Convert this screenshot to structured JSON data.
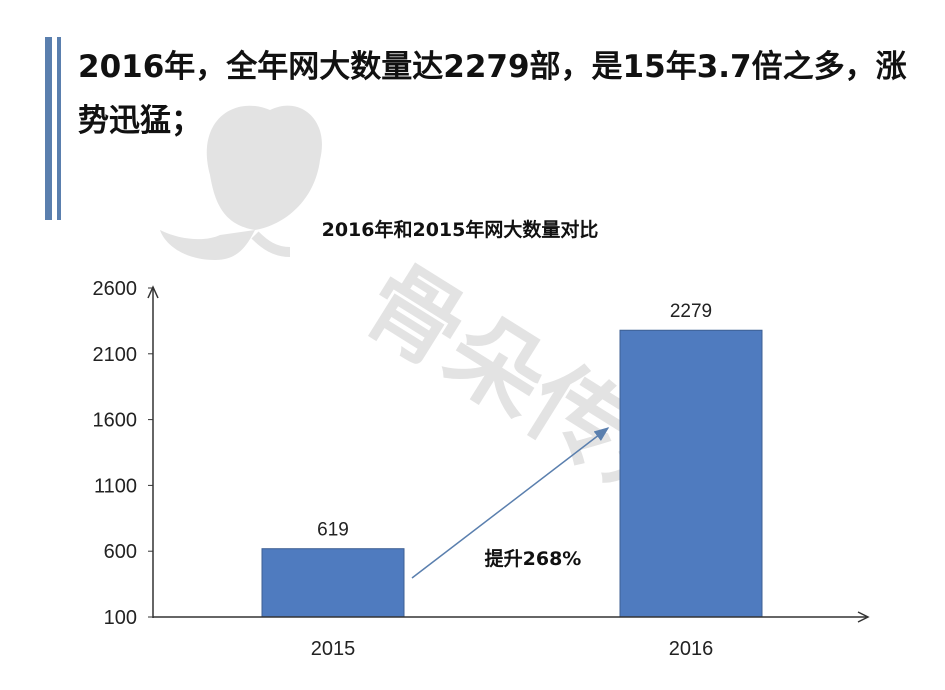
{
  "headline": "2016年，全年网大数量达2279部，是15年3.7倍之多，涨势迅猛；",
  "watermark": {
    "text": "骨朵传媒",
    "color": "#e3e3e3"
  },
  "chart_data": {
    "type": "bar",
    "title": "2016年和2015年网大数量对比",
    "categories": [
      "2015",
      "2016"
    ],
    "values": [
      619,
      2279
    ],
    "data_labels": [
      "619",
      "2279"
    ],
    "ylim": [
      100,
      2600
    ],
    "yticks": [
      "100",
      "600",
      "1100",
      "1600",
      "2100",
      "2600"
    ],
    "xlabel": "",
    "ylabel": "",
    "grid": false,
    "bar_color": "#4f7bbf",
    "annotation": "提升268%"
  }
}
